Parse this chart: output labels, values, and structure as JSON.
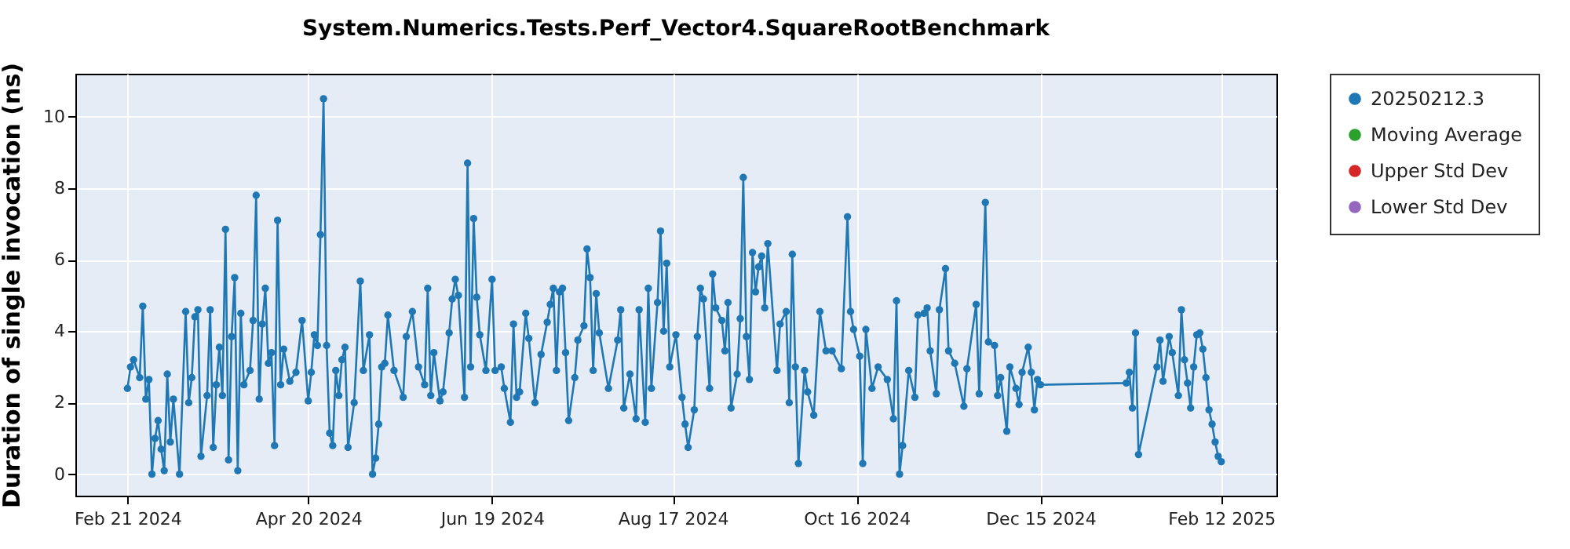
{
  "chart_data": {
    "type": "line",
    "title": "System.Numerics.Tests.Perf_Vector4.SquareRootBenchmark",
    "ylabel": "Duration of single invocation (ns)",
    "x": [
      "2024-02-21",
      "2024-02-22",
      "2024-02-23",
      "2024-02-25",
      "2024-02-26",
      "2024-02-27",
      "2024-02-28",
      "2024-02-29",
      "2024-03-01",
      "2024-03-02",
      "2024-03-03",
      "2024-03-04",
      "2024-03-05",
      "2024-03-06",
      "2024-03-07",
      "2024-03-09",
      "2024-03-11",
      "2024-03-12",
      "2024-03-13",
      "2024-03-14",
      "2024-03-15",
      "2024-03-16",
      "2024-03-18",
      "2024-03-19",
      "2024-03-20",
      "2024-03-21",
      "2024-03-22",
      "2024-03-23",
      "2024-03-24",
      "2024-03-25",
      "2024-03-26",
      "2024-03-27",
      "2024-03-28",
      "2024-03-29",
      "2024-03-30",
      "2024-04-01",
      "2024-04-02",
      "2024-04-03",
      "2024-04-04",
      "2024-04-05",
      "2024-04-06",
      "2024-04-07",
      "2024-04-08",
      "2024-04-09",
      "2024-04-10",
      "2024-04-11",
      "2024-04-12",
      "2024-04-14",
      "2024-04-16",
      "2024-04-18",
      "2024-04-20",
      "2024-04-21",
      "2024-04-22",
      "2024-04-23",
      "2024-04-24",
      "2024-04-25",
      "2024-04-26",
      "2024-04-27",
      "2024-04-28",
      "2024-04-29",
      "2024-04-30",
      "2024-05-01",
      "2024-05-02",
      "2024-05-03",
      "2024-05-05",
      "2024-05-07",
      "2024-05-08",
      "2024-05-10",
      "2024-05-11",
      "2024-05-12",
      "2024-05-13",
      "2024-05-14",
      "2024-05-15",
      "2024-05-16",
      "2024-05-18",
      "2024-05-21",
      "2024-05-22",
      "2024-05-24",
      "2024-05-26",
      "2024-05-28",
      "2024-05-29",
      "2024-05-30",
      "2024-05-31",
      "2024-06-02",
      "2024-06-03",
      "2024-06-05",
      "2024-06-06",
      "2024-06-07",
      "2024-06-08",
      "2024-06-10",
      "2024-06-11",
      "2024-06-12",
      "2024-06-13",
      "2024-06-14",
      "2024-06-15",
      "2024-06-17",
      "2024-06-19",
      "2024-06-20",
      "2024-06-22",
      "2024-06-23",
      "2024-06-25",
      "2024-06-26",
      "2024-06-27",
      "2024-06-28",
      "2024-06-30",
      "2024-07-01",
      "2024-07-03",
      "2024-07-05",
      "2024-07-07",
      "2024-07-08",
      "2024-07-09",
      "2024-07-10",
      "2024-07-11",
      "2024-07-12",
      "2024-07-13",
      "2024-07-14",
      "2024-07-16",
      "2024-07-17",
      "2024-07-19",
      "2024-07-20",
      "2024-07-21",
      "2024-07-22",
      "2024-07-23",
      "2024-07-24",
      "2024-07-27",
      "2024-07-30",
      "2024-07-31",
      "2024-08-01",
      "2024-08-03",
      "2024-08-05",
      "2024-08-06",
      "2024-08-08",
      "2024-08-09",
      "2024-08-10",
      "2024-08-12",
      "2024-08-13",
      "2024-08-14",
      "2024-08-15",
      "2024-08-16",
      "2024-08-18",
      "2024-08-20",
      "2024-08-21",
      "2024-08-22",
      "2024-08-24",
      "2024-08-25",
      "2024-08-26",
      "2024-08-27",
      "2024-08-29",
      "2024-08-30",
      "2024-08-31",
      "2024-09-02",
      "2024-09-03",
      "2024-09-04",
      "2024-09-05",
      "2024-09-07",
      "2024-09-08",
      "2024-09-09",
      "2024-09-10",
      "2024-09-11",
      "2024-09-12",
      "2024-09-13",
      "2024-09-14",
      "2024-09-15",
      "2024-09-16",
      "2024-09-17",
      "2024-09-20",
      "2024-09-21",
      "2024-09-23",
      "2024-09-24",
      "2024-09-25",
      "2024-09-26",
      "2024-09-27",
      "2024-09-29",
      "2024-09-30",
      "2024-10-02",
      "2024-10-04",
      "2024-10-06",
      "2024-10-08",
      "2024-10-11",
      "2024-10-13",
      "2024-10-14",
      "2024-10-15",
      "2024-10-17",
      "2024-10-18",
      "2024-10-19",
      "2024-10-21",
      "2024-10-23",
      "2024-10-26",
      "2024-10-28",
      "2024-10-29",
      "2024-10-30",
      "2024-10-31",
      "2024-11-02",
      "2024-11-04",
      "2024-11-05",
      "2024-11-07",
      "2024-11-08",
      "2024-11-09",
      "2024-11-11",
      "2024-11-12",
      "2024-11-14",
      "2024-11-15",
      "2024-11-17",
      "2024-11-20",
      "2024-11-21",
      "2024-11-24",
      "2024-11-25",
      "2024-11-27",
      "2024-11-28",
      "2024-11-30",
      "2024-12-01",
      "2024-12-02",
      "2024-12-04",
      "2024-12-05",
      "2024-12-07",
      "2024-12-08",
      "2024-12-09",
      "2024-12-11",
      "2024-12-12",
      "2024-12-13",
      "2024-12-14",
      "2024-12-15",
      "2025-01-12",
      "2025-01-13",
      "2025-01-14",
      "2025-01-15",
      "2025-01-16",
      "2025-01-22",
      "2025-01-23",
      "2025-01-24",
      "2025-01-26",
      "2025-01-27",
      "2025-01-29",
      "2025-01-30",
      "2025-01-31",
      "2025-02-01",
      "2025-02-02",
      "2025-02-03",
      "2025-02-04",
      "2025-02-05",
      "2025-02-06",
      "2025-02-07",
      "2025-02-08",
      "2025-02-09",
      "2025-02-10",
      "2025-02-11",
      "2025-02-12"
    ],
    "series": [
      {
        "name": "20250212.3",
        "color": "#1f77b4",
        "values": [
          2.4,
          3.0,
          3.2,
          2.7,
          4.7,
          2.1,
          2.65,
          0.0,
          1.0,
          1.5,
          0.7,
          0.1,
          2.8,
          0.9,
          2.1,
          0.0,
          4.55,
          2.0,
          2.7,
          4.4,
          4.6,
          0.5,
          2.2,
          4.6,
          0.75,
          2.5,
          3.55,
          2.2,
          6.85,
          0.4,
          3.85,
          5.5,
          0.1,
          4.5,
          2.5,
          2.9,
          4.3,
          7.8,
          2.1,
          4.2,
          5.2,
          3.1,
          3.4,
          0.8,
          7.1,
          2.5,
          3.5,
          2.6,
          2.85,
          4.3,
          2.05,
          2.85,
          3.9,
          3.6,
          6.7,
          10.5,
          3.6,
          1.15,
          0.8,
          2.9,
          2.2,
          3.2,
          3.55,
          0.75,
          2.0,
          5.4,
          2.9,
          3.9,
          0.0,
          0.45,
          1.4,
          3.0,
          3.1,
          4.45,
          2.9,
          2.15,
          3.85,
          4.55,
          3.0,
          2.5,
          5.2,
          2.2,
          3.4,
          2.05,
          2.3,
          3.95,
          4.9,
          5.45,
          5.0,
          2.15,
          8.7,
          3.0,
          7.15,
          4.95,
          3.9,
          2.9,
          5.45,
          2.9,
          3.0,
          2.4,
          1.45,
          4.2,
          2.15,
          2.3,
          4.5,
          3.8,
          2.0,
          3.35,
          4.25,
          4.75,
          5.2,
          2.9,
          5.1,
          5.2,
          3.4,
          1.5,
          2.7,
          3.75,
          4.15,
          6.3,
          5.5,
          2.9,
          5.05,
          3.95,
          2.4,
          3.75,
          4.6,
          1.85,
          2.8,
          1.55,
          4.6,
          1.45,
          5.2,
          2.4,
          4.8,
          6.8,
          4.0,
          5.9,
          3.0,
          3.9,
          2.15,
          1.4,
          0.75,
          1.8,
          3.85,
          5.2,
          4.9,
          2.4,
          5.6,
          4.65,
          4.3,
          3.45,
          4.8,
          1.85,
          2.8,
          4.35,
          8.3,
          3.85,
          2.65,
          6.2,
          5.1,
          5.8,
          6.1,
          4.65,
          6.45,
          2.9,
          4.2,
          4.55,
          2.0,
          6.15,
          3.0,
          0.3,
          2.9,
          2.3,
          1.65,
          4.55,
          3.45,
          3.45,
          2.95,
          7.2,
          4.55,
          4.05,
          3.3,
          0.3,
          4.05,
          2.4,
          3.0,
          2.65,
          1.55,
          4.85,
          0.0,
          0.8,
          2.9,
          2.15,
          4.45,
          4.5,
          4.65,
          3.45,
          2.25,
          4.6,
          5.75,
          3.45,
          3.1,
          1.9,
          2.95,
          4.75,
          2.25,
          7.6,
          3.7,
          3.6,
          2.2,
          2.7,
          1.2,
          3.0,
          2.4,
          1.95,
          2.85,
          3.55,
          2.85,
          1.8,
          2.65,
          2.5,
          2.55,
          2.85,
          1.85,
          3.95,
          0.55,
          3.0,
          3.75,
          2.6,
          3.85,
          3.4,
          2.2,
          4.6,
          3.2,
          2.55,
          1.85,
          3.0,
          3.9,
          3.95,
          3.5,
          2.7,
          1.8,
          1.4,
          0.9,
          0.5,
          0.35
        ]
      },
      {
        "name": "Moving Average",
        "color": "#2ca02c",
        "values": [
          null,
          null,
          null,
          null,
          null,
          null,
          null,
          null,
          null,
          null,
          null,
          null,
          null,
          null,
          null,
          null,
          null,
          null,
          null,
          null,
          null,
          null,
          null,
          null,
          null,
          null,
          null,
          null,
          null,
          null,
          null,
          null,
          null,
          null,
          null,
          null,
          null,
          null,
          null,
          null,
          null,
          null,
          null,
          null,
          null,
          null,
          null,
          null,
          null,
          null,
          null,
          null,
          null,
          null,
          null,
          null,
          null,
          null,
          null,
          null,
          null,
          null,
          null,
          null,
          null,
          null,
          null,
          null,
          null,
          null,
          null,
          null,
          null,
          null,
          null,
          null,
          null,
          null,
          null,
          null,
          null,
          null,
          null,
          null,
          null,
          null,
          null,
          null,
          null,
          null,
          null,
          null,
          null,
          null,
          null,
          null,
          null,
          null,
          null,
          null,
          null,
          null,
          null,
          null,
          null,
          null,
          null,
          null,
          null,
          null,
          null,
          null,
          null,
          null,
          null,
          null,
          null,
          null,
          null,
          null,
          null,
          null,
          null,
          null,
          null,
          null,
          null,
          null,
          null,
          null,
          null,
          null,
          null,
          null,
          null,
          null,
          null,
          null,
          null,
          null,
          null,
          null,
          null,
          null,
          null,
          null,
          null,
          null,
          null,
          null,
          null,
          null,
          null,
          null,
          null,
          null,
          null,
          null,
          null,
          null,
          null,
          null,
          null,
          null,
          null,
          null,
          null,
          null,
          null,
          null,
          null,
          null,
          null,
          null,
          null,
          null,
          null,
          null,
          null,
          null,
          null,
          null,
          null,
          null,
          null,
          null,
          null,
          null,
          null,
          null,
          null,
          null,
          null,
          null,
          null,
          null,
          null,
          null,
          null,
          null,
          null,
          null,
          null,
          null,
          null,
          null,
          null,
          null,
          null,
          null,
          null,
          null,
          null,
          null,
          null,
          null,
          null,
          null,
          null,
          null,
          null,
          null,
          null,
          null,
          null,
          null,
          null,
          null,
          null,
          null,
          null,
          null,
          null,
          null,
          null,
          null,
          null,
          null,
          null,
          null,
          null,
          null,
          null,
          null,
          null,
          null,
          null
        ]
      },
      {
        "name": "Upper Std Dev",
        "color": "#d62728",
        "values": [
          null,
          null,
          null,
          null,
          null,
          null,
          null,
          null,
          null,
          null,
          null,
          null,
          null,
          null,
          null,
          null,
          null,
          null,
          null,
          null,
          null,
          null,
          null,
          null,
          null,
          null,
          null,
          null,
          null,
          null,
          null,
          null,
          null,
          null,
          null,
          null,
          null,
          null,
          null,
          null,
          null,
          null,
          null,
          null,
          null,
          null,
          null,
          null,
          null,
          null,
          null,
          null,
          null,
          null,
          null,
          null,
          null,
          null,
          null,
          null,
          null,
          null,
          null,
          null,
          null,
          null,
          null,
          null,
          null,
          null,
          null,
          null,
          null,
          null,
          null,
          null,
          null,
          null,
          null,
          null,
          null,
          null,
          null,
          null,
          null,
          null,
          null,
          null,
          null,
          null,
          null,
          null,
          null,
          null,
          null,
          null,
          null,
          null,
          null,
          null,
          null,
          null,
          null,
          null,
          null,
          null,
          null,
          null,
          null,
          null,
          null,
          null,
          null,
          null,
          null,
          null,
          null,
          null,
          null,
          null,
          null,
          null,
          null,
          null,
          null,
          null,
          null,
          null,
          null,
          null,
          null,
          null,
          null,
          null,
          null,
          null,
          null,
          null,
          null,
          null,
          null,
          null,
          null,
          null,
          null,
          null,
          null,
          null,
          null,
          null,
          null,
          null,
          null,
          null,
          null,
          null,
          null,
          null,
          null,
          null,
          null,
          null,
          null,
          null,
          null,
          null,
          null,
          null,
          null,
          null,
          null,
          null,
          null,
          null,
          null,
          null,
          null,
          null,
          null,
          null,
          null,
          null,
          null,
          null,
          null,
          null,
          null,
          null,
          null,
          null,
          null,
          null,
          null,
          null,
          null,
          null,
          null,
          null,
          null,
          null,
          null,
          null,
          null,
          null,
          null,
          null,
          null,
          null,
          null,
          null,
          null,
          null,
          null,
          null,
          null,
          null,
          null,
          null,
          null,
          null,
          null,
          null,
          null,
          null,
          null,
          null,
          null,
          null,
          null,
          null,
          null,
          null,
          null,
          null,
          null,
          null,
          null,
          null,
          null,
          null,
          null,
          null,
          null,
          null,
          null,
          null,
          null
        ]
      },
      {
        "name": "Lower Std Dev",
        "color": "#9467bd",
        "values": [
          null,
          null,
          null,
          null,
          null,
          null,
          null,
          null,
          null,
          null,
          null,
          null,
          null,
          null,
          null,
          null,
          null,
          null,
          null,
          null,
          null,
          null,
          null,
          null,
          null,
          null,
          null,
          null,
          null,
          null,
          null,
          null,
          null,
          null,
          null,
          null,
          null,
          null,
          null,
          null,
          null,
          null,
          null,
          null,
          null,
          null,
          null,
          null,
          null,
          null,
          null,
          null,
          null,
          null,
          null,
          null,
          null,
          null,
          null,
          null,
          null,
          null,
          null,
          null,
          null,
          null,
          null,
          null,
          null,
          null,
          null,
          null,
          null,
          null,
          null,
          null,
          null,
          null,
          null,
          null,
          null,
          null,
          null,
          null,
          null,
          null,
          null,
          null,
          null,
          null,
          null,
          null,
          null,
          null,
          null,
          null,
          null,
          null,
          null,
          null,
          null,
          null,
          null,
          null,
          null,
          null,
          null,
          null,
          null,
          null,
          null,
          null,
          null,
          null,
          null,
          null,
          null,
          null,
          null,
          null,
          null,
          null,
          null,
          null,
          null,
          null,
          null,
          null,
          null,
          null,
          null,
          null,
          null,
          null,
          null,
          null,
          null,
          null,
          null,
          null,
          null,
          null,
          null,
          null,
          null,
          null,
          null,
          null,
          null,
          null,
          null,
          null,
          null,
          null,
          null,
          null,
          null,
          null,
          null,
          null,
          null,
          null,
          null,
          null,
          null,
          null,
          null,
          null,
          null,
          null,
          null,
          null,
          null,
          null,
          null,
          null,
          null,
          null,
          null,
          null,
          null,
          null,
          null,
          null,
          null,
          null,
          null,
          null,
          null,
          null,
          null,
          null,
          null,
          null,
          null,
          null,
          null,
          null,
          null,
          null,
          null,
          null,
          null,
          null,
          null,
          null,
          null,
          null,
          null,
          null,
          null,
          null,
          null,
          null,
          null,
          null,
          null,
          null,
          null,
          null,
          null,
          null,
          null,
          null,
          null,
          null,
          null,
          null,
          null,
          null,
          null,
          null,
          null,
          null,
          null,
          null,
          null,
          null,
          null,
          null,
          null,
          null,
          null,
          null,
          null,
          null,
          null
        ]
      }
    ],
    "xlim": [
      "2024-02-04",
      "2025-03-02"
    ],
    "xticks": [
      {
        "value": "2024-02-21",
        "label": "Feb 21 2024"
      },
      {
        "value": "2024-04-20",
        "label": "Apr 20 2024"
      },
      {
        "value": "2024-06-19",
        "label": "Jun 19 2024"
      },
      {
        "value": "2024-08-17",
        "label": "Aug 17 2024"
      },
      {
        "value": "2024-10-16",
        "label": "Oct 16 2024"
      },
      {
        "value": "2024-12-15",
        "label": "Dec 15 2024"
      },
      {
        "value": "2025-02-12",
        "label": "Feb 12 2025"
      }
    ],
    "ylim": [
      -0.6,
      11.2
    ],
    "yticks": [
      0,
      2,
      4,
      6,
      8,
      10
    ],
    "grid": true,
    "legend": "right",
    "marker": "circle",
    "line_style": "solid"
  }
}
